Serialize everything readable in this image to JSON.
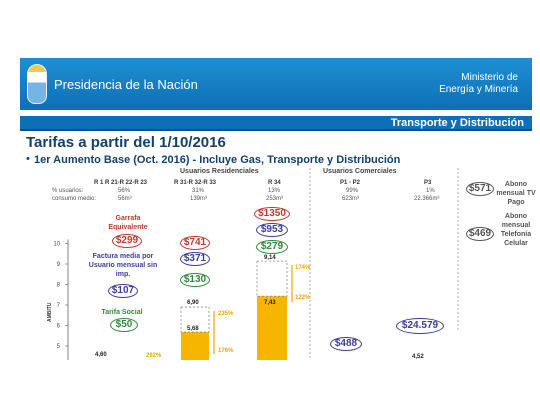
{
  "header": {
    "brand": "Presidencia de la Nación",
    "ministry_line1": "Ministerio de",
    "ministry_line2": "Energía y Minería",
    "section": "Transporte y Distribución"
  },
  "title": "Tarifas a partir del 1/10/2016",
  "subtitle": "1er Aumento Base (Oct. 2016)  -  Incluye Gas, Transporte y Distribución",
  "bullet": "•",
  "segments": {
    "residential": "Usuarios Residenciales",
    "commercial": "Usuarios Comerciales"
  },
  "row_labels": {
    "users": "% usuarios:",
    "consumption": "consumo medio:"
  },
  "groups": [
    {
      "code": "R 1 R 21-R 22-R 23",
      "users": "56%",
      "consumption": "56m³"
    },
    {
      "code": "R 31-R 32-R 33",
      "users": "31%",
      "consumption": "139m³"
    },
    {
      "code": "R 34",
      "users": "13%",
      "consumption": "253m³"
    },
    {
      "code": "P1 - P2",
      "users": "99%",
      "consumption": "623m³"
    },
    {
      "code": "P3",
      "users": "1%",
      "consumption": "22.366m³"
    }
  ],
  "annotations": {
    "garrafa": "Garrafa Equivalente",
    "factura": "Factura media por Usuario mensual sin imp.",
    "tarifa_social": "Tarifa Social",
    "tv": "Abono mensual TV Pago",
    "telefonia": "Abono mensual Telefonía Celular"
  },
  "bubbles": {
    "garrafa": "$299",
    "r3_garrafa": "$741",
    "r3_factura": "$371",
    "r3_social": "$130",
    "r1_factura": "$107",
    "r1_social": "$50",
    "r34_garrafa": "$1350",
    "r34_factura": "$953",
    "r34_social": "$279",
    "p_factura": "$488",
    "p3_factura": "$24.579",
    "tv": "$571",
    "celular": "$469"
  },
  "chart_data": {
    "type": "bar",
    "ylabel": "AMBITU",
    "ylim": [
      4.5,
      10
    ],
    "yticks": [
      5,
      6,
      7,
      8,
      9,
      10
    ],
    "bars": [
      {
        "group": "R 1 R 21-R 22-R 23",
        "value": 4.6,
        "label": "4,60",
        "increase": "292%"
      },
      {
        "group": "R 31-R 32-R 33",
        "before": 5.68,
        "after": 6.9,
        "before_label": "5,68",
        "after_label": "6,90",
        "increase_before": "176%",
        "increase_after": "235%"
      },
      {
        "group": "R 34",
        "before": 7.43,
        "after": 9.14,
        "before_label": "7,43",
        "after_label": "9,14",
        "increase_before": "122%",
        "increase_after": "174%"
      },
      {
        "group": "P3",
        "value": 4.52,
        "label": "4,52"
      }
    ],
    "colors": {
      "bar": "#f7b500",
      "dashed": "#888888",
      "arrow": "#f0a500"
    },
    "grid": false
  }
}
